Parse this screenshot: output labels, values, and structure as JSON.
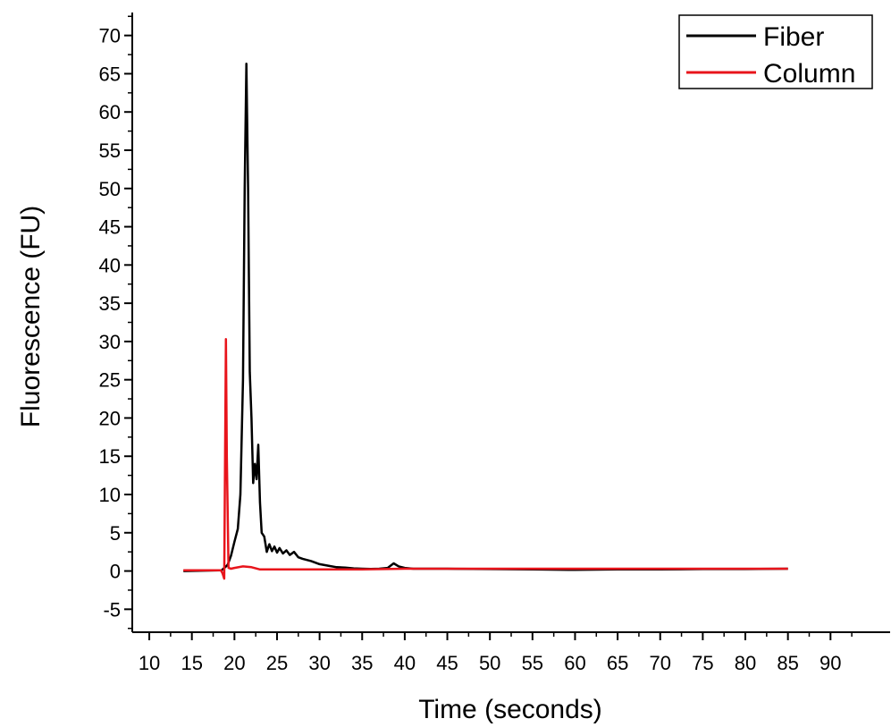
{
  "chart_data": {
    "type": "line",
    "xlabel": "Time (seconds)",
    "ylabel": "Fluorescence (FU)",
    "xlim": [
      8,
      97
    ],
    "ylim": [
      -8,
      73
    ],
    "x_ticks": [
      "10",
      "15",
      "20",
      "25",
      "30",
      "35",
      "40",
      "45",
      "50",
      "55",
      "60",
      "65",
      "70",
      "75",
      "80",
      "85",
      "90"
    ],
    "y_ticks": [
      "-5",
      "0",
      "5",
      "10",
      "15",
      "20",
      "25",
      "30",
      "35",
      "40",
      "45",
      "50",
      "55",
      "60",
      "65",
      "70"
    ],
    "grid": false,
    "legend_position": "top-right",
    "series": [
      {
        "name": "Fiber",
        "color": "#000000",
        "x": [
          14,
          18.5,
          18.9,
          19.2,
          19.6,
          20.0,
          20.4,
          20.7,
          21.0,
          21.2,
          21.4,
          21.6,
          21.8,
          22.0,
          22.2,
          22.4,
          22.6,
          22.8,
          23.0,
          23.2,
          23.5,
          23.8,
          24.1,
          24.4,
          24.7,
          25.0,
          25.3,
          25.7,
          26.1,
          26.5,
          27.0,
          27.5,
          28.0,
          29.0,
          30.0,
          31.0,
          32.0,
          33.0,
          34.0,
          35.0,
          36.0,
          37.0,
          38.0,
          38.7,
          39.3,
          40.0,
          41.0,
          45.0,
          50.0,
          55.0,
          60.0,
          65.0,
          70.0,
          75.0,
          80.0,
          85.0
        ],
        "y": [
          0,
          0.1,
          0.5,
          0.8,
          2.0,
          3.8,
          5.5,
          10.0,
          25.0,
          50.0,
          66.3,
          50.0,
          26.0,
          20.0,
          11.5,
          14.0,
          12.0,
          16.5,
          9.0,
          5.0,
          4.5,
          2.5,
          3.5,
          2.6,
          3.2,
          2.4,
          3.0,
          2.3,
          2.7,
          2.1,
          2.5,
          1.8,
          1.6,
          1.3,
          0.9,
          0.7,
          0.5,
          0.45,
          0.35,
          0.3,
          0.28,
          0.3,
          0.4,
          1.0,
          0.6,
          0.4,
          0.3,
          0.3,
          0.25,
          0.2,
          0.15,
          0.2,
          0.2,
          0.25,
          0.25,
          0.3
        ]
      },
      {
        "name": "Column",
        "color": "#e8141b",
        "x": [
          14,
          18.4,
          18.6,
          18.8,
          19.0,
          19.1,
          19.3,
          19.6,
          20.0,
          21.0,
          22.0,
          23.0,
          24.0,
          26.0,
          28.0,
          30.0,
          35.0,
          40.0,
          45.0,
          50.0,
          55.0,
          60.0,
          65.0,
          70.0,
          75.0,
          80.0,
          85.0
        ],
        "y": [
          0.1,
          0.1,
          -0.3,
          -1.0,
          30.3,
          15.0,
          0.4,
          0.3,
          0.4,
          0.6,
          0.5,
          0.2,
          0.2,
          0.2,
          0.2,
          0.2,
          0.2,
          0.3,
          0.3,
          0.3,
          0.3,
          0.3,
          0.3,
          0.3,
          0.3,
          0.3,
          0.3
        ]
      }
    ]
  }
}
